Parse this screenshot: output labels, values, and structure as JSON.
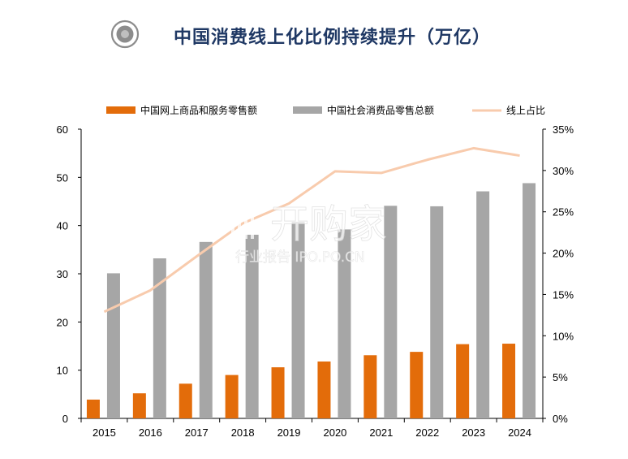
{
  "title": "中国消费线上化比例持续提升（万亿）",
  "watermark": {
    "main": "开购家",
    "sub": "行业报告 IPO.PO.CN"
  },
  "colors": {
    "online": "#e36c0a",
    "total": "#a6a6a6",
    "ratio": "#f8cbad",
    "title": "#1f3864"
  },
  "chart_data": {
    "type": "bar",
    "categories": [
      "2015",
      "2016",
      "2017",
      "2018",
      "2019",
      "2020",
      "2021",
      "2022",
      "2023",
      "2024"
    ],
    "series": [
      {
        "name": "中国网上商品和服务零售额",
        "type": "bar",
        "axis": "left",
        "values": [
          3.9,
          5.2,
          7.2,
          9.0,
          10.6,
          11.8,
          13.1,
          13.8,
          15.4,
          15.5
        ]
      },
      {
        "name": "中国社会消费品零售总额",
        "type": "bar",
        "axis": "left",
        "values": [
          30.1,
          33.2,
          36.6,
          38.1,
          40.8,
          39.2,
          44.1,
          44.0,
          47.1,
          48.8
        ]
      },
      {
        "name": "线上占比",
        "type": "line",
        "axis": "right",
        "values": [
          12.9,
          15.5,
          19.6,
          23.6,
          26.0,
          29.9,
          29.7,
          31.3,
          32.7,
          31.8
        ]
      }
    ],
    "ylim_left": [
      0,
      60
    ],
    "yticks_left": [
      "0",
      "10",
      "20",
      "30",
      "40",
      "50",
      "60"
    ],
    "ylim_right": [
      0,
      35
    ],
    "yticks_right": [
      "0%",
      "5%",
      "10%",
      "15%",
      "20%",
      "25%",
      "30%",
      "35%"
    ],
    "legend": "top",
    "grid": false
  }
}
